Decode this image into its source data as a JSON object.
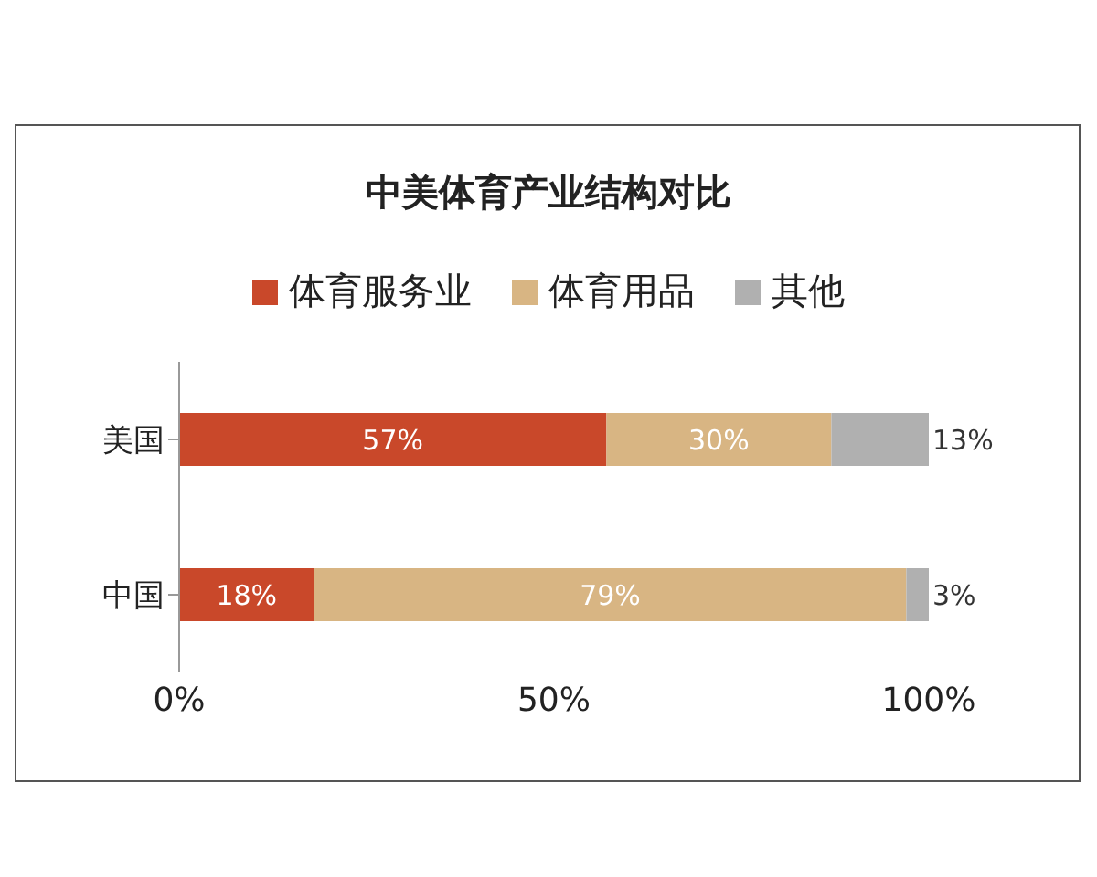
{
  "chart_data": {
    "type": "bar",
    "orientation": "horizontal",
    "stacked": true,
    "title": "中美体育产业结构对比",
    "categories": [
      "美国",
      "中国"
    ],
    "series": [
      {
        "name": "体育服务业",
        "color": "#c9482a",
        "values": [
          57,
          18
        ],
        "value_labels": [
          "57%",
          "18%"
        ]
      },
      {
        "name": "体育用品",
        "color": "#d8b583",
        "values": [
          30,
          79
        ],
        "value_labels": [
          "30%",
          "79%"
        ]
      },
      {
        "name": "其他",
        "color": "#b0b0b0",
        "values": [
          13,
          3
        ],
        "value_labels": [
          "13%",
          "3%"
        ]
      }
    ],
    "xlim": [
      0,
      100
    ],
    "xticks": [
      {
        "value": 0,
        "label": "0%"
      },
      {
        "value": 50,
        "label": "50%"
      },
      {
        "value": 100,
        "label": "100%"
      }
    ],
    "legend": "top"
  }
}
